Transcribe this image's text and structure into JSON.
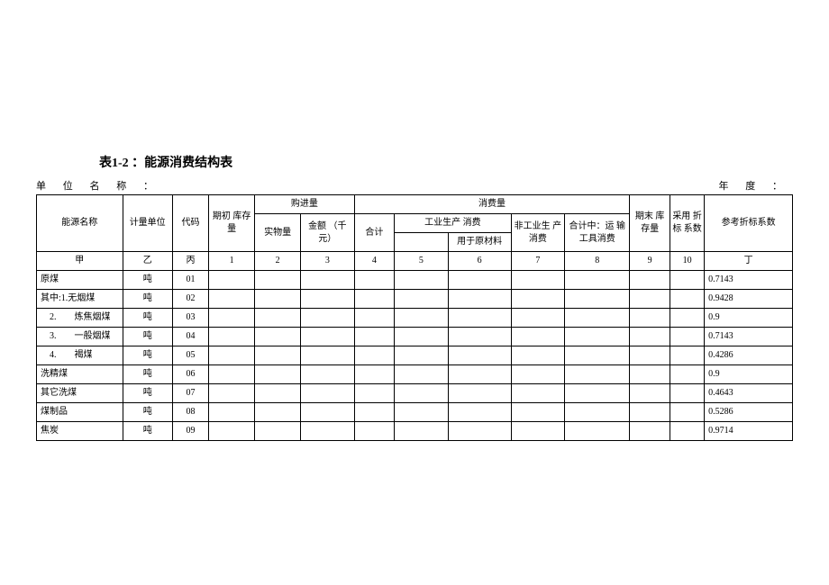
{
  "title": "表1-2 ：能源消费结构表",
  "meta": {
    "unit_label": "单 位 名 称 ：",
    "year_label": "年 度 ："
  },
  "header": {
    "energy_name": "能源名称",
    "unit": "计量单位",
    "code": "代码",
    "begin_inv": "期初\n库存量",
    "purchase": "购进量",
    "purchase_qty": "实物量",
    "purchase_amt": "金额\n（千元）",
    "consumption": "消费量",
    "total": "合计",
    "ind_cons": "工业生产\n消费",
    "raw_mat": "用于原材料",
    "nonind_cons": "非工业生\n产消费",
    "transport": "合计中：运\n输工具消费",
    "end_inv": "期末\n库存量",
    "adopt_coef": "采用\n折标\n系数",
    "ref_coef": "参考折标系数",
    "row_jia": "甲",
    "row_yi": "乙",
    "row_bing": "丙",
    "row_ding": "丁",
    "n1": "1",
    "n2": "2",
    "n3": "3",
    "n4": "4",
    "n5": "5",
    "n6": "6",
    "n7": "7",
    "n8": "8",
    "n9": "9",
    "n10": "10"
  },
  "rows": [
    {
      "name": "原煤",
      "indent": 0,
      "unit": "吨",
      "code": "01",
      "ref": "0.7143"
    },
    {
      "name": "其中:1.无烟煤",
      "indent": 0,
      "unit": "吨",
      "code": "02",
      "ref": "0.9428"
    },
    {
      "name": "2.　　炼焦烟煤",
      "indent": 1,
      "unit": "吨",
      "code": "03",
      "ref": "0.9"
    },
    {
      "name": "3.　　一般烟煤",
      "indent": 1,
      "unit": "吨",
      "code": "04",
      "ref": "0.7143"
    },
    {
      "name": "4.　　褐煤",
      "indent": 1,
      "unit": "吨",
      "code": "05",
      "ref": "0.4286"
    },
    {
      "name": "洗精煤",
      "indent": 0,
      "unit": "吨",
      "code": "06",
      "ref": "0.9"
    },
    {
      "name": "其它洗煤",
      "indent": 0,
      "unit": "吨",
      "code": "07",
      "ref": "0.4643"
    },
    {
      "name": "煤制品",
      "indent": 0,
      "unit": "吨",
      "code": "08",
      "ref": "0.5286"
    },
    {
      "name": "焦炭",
      "indent": 0,
      "unit": "吨",
      "code": "09",
      "ref": "0.9714"
    }
  ]
}
